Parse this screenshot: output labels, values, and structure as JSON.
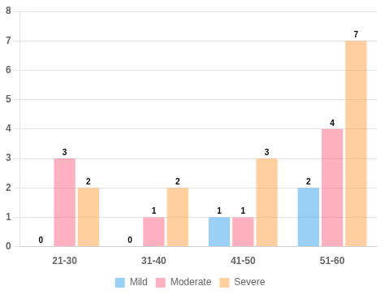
{
  "chart_data": {
    "type": "bar",
    "categories": [
      "21-30",
      "31-40",
      "41-50",
      "51-60"
    ],
    "series": [
      {
        "name": "Mild",
        "values": [
          0,
          0,
          1,
          2
        ]
      },
      {
        "name": "Moderate",
        "values": [
          3,
          1,
          1,
          4
        ]
      },
      {
        "name": "Severe",
        "values": [
          2,
          2,
          3,
          7
        ]
      }
    ],
    "ylim": [
      0,
      8
    ],
    "yticks": [
      0,
      1,
      2,
      3,
      4,
      5,
      6,
      7,
      8
    ],
    "grid": true,
    "legend": "bottom",
    "data_labels": true
  }
}
